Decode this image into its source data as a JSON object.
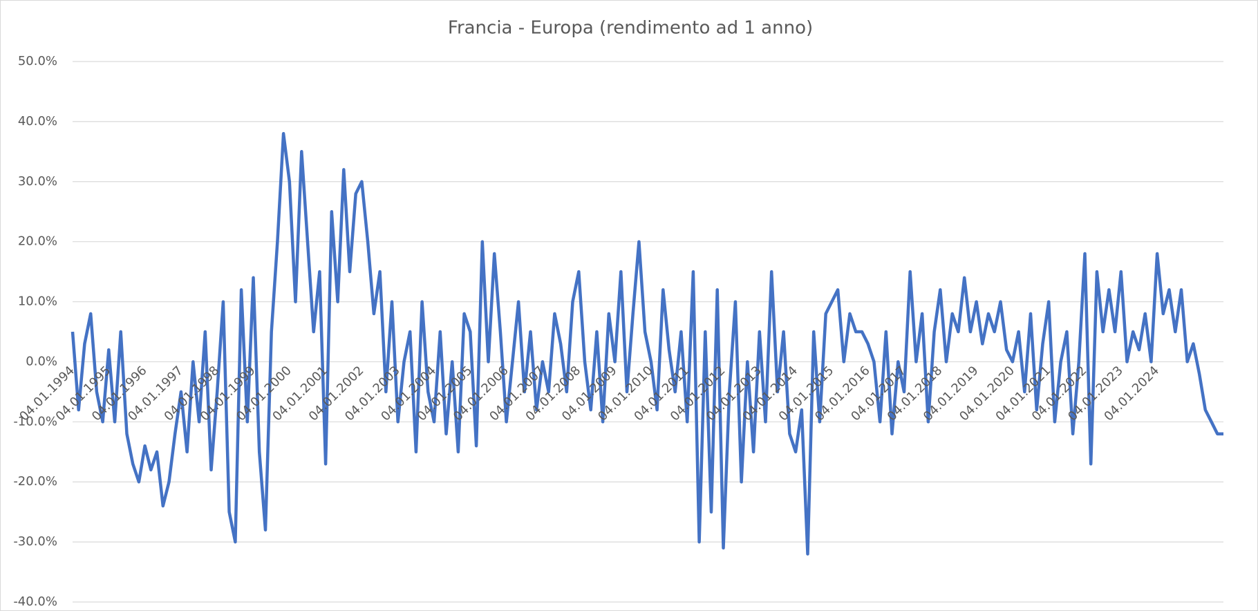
{
  "chart_data": {
    "type": "line",
    "title": "Francia - Europa (rendimento ad 1 anno)",
    "categories": [
      "04.01.1994",
      null,
      null,
      null,
      null,
      null,
      "04.01.1995",
      null,
      null,
      null,
      null,
      null,
      "04.01.1996",
      null,
      null,
      null,
      null,
      null,
      "04.01.1997",
      null,
      null,
      null,
      null,
      null,
      "04.01.1998",
      null,
      null,
      null,
      null,
      null,
      "04.01.1999",
      null,
      null,
      null,
      null,
      null,
      "04.01.2000",
      null,
      null,
      null,
      null,
      null,
      "04.01.2001",
      null,
      null,
      null,
      null,
      null,
      "04.01.2002",
      null,
      null,
      null,
      null,
      null,
      "04.01.2003",
      null,
      null,
      null,
      null,
      null,
      "04.01.2004",
      null,
      null,
      null,
      null,
      null,
      "04.01.2005",
      null,
      null,
      null,
      null,
      null,
      "04.01.2006",
      null,
      null,
      null,
      null,
      null,
      "04.01.2007",
      null,
      null,
      null,
      null,
      null,
      "04.01.2008",
      null,
      null,
      null,
      null,
      null,
      "04.01.2009",
      null,
      null,
      null,
      null,
      null,
      "04.01.2010",
      null,
      null,
      null,
      null,
      null,
      "04.01.2011",
      null,
      null,
      null,
      null,
      null,
      "04.01.2012",
      null,
      null,
      null,
      null,
      null,
      "04.01.2013",
      null,
      null,
      null,
      null,
      null,
      "04.01.2014",
      null,
      null,
      null,
      null,
      null,
      "04.01.2015",
      null,
      null,
      null,
      null,
      null,
      "04.01.2016",
      null,
      null,
      null,
      null,
      null,
      "04.01.2017",
      null,
      null,
      null,
      null,
      null,
      "04.01.2018",
      null,
      null,
      null,
      null,
      null,
      "04.01.2019",
      null,
      null,
      null,
      null,
      null,
      "04.01.2020",
      null,
      null,
      null,
      null,
      null,
      "04.01.2021",
      null,
      null,
      null,
      null,
      null,
      "04.01.2022",
      null,
      null,
      null,
      null,
      null,
      "04.01.2023",
      null,
      null,
      null,
      null,
      null,
      "04.01.2024",
      null,
      null,
      null,
      null,
      null,
      null,
      null,
      null,
      null,
      null,
      null
    ],
    "series": [
      {
        "name": "Francia - Europa",
        "color": "#4472c4",
        "values": [
          5,
          -8,
          3,
          8,
          -5,
          -10,
          2,
          -10,
          5,
          -12,
          -17,
          -20,
          -14,
          -18,
          -15,
          -24,
          -20,
          -12,
          -5,
          -15,
          0,
          -10,
          5,
          -18,
          -5,
          10,
          -25,
          -30,
          12,
          -10,
          14,
          -15,
          -28,
          5,
          20,
          38,
          30,
          10,
          35,
          20,
          5,
          15,
          -17,
          25,
          10,
          32,
          15,
          28,
          30,
          20,
          8,
          15,
          -5,
          10,
          -10,
          0,
          5,
          -15,
          10,
          -5,
          -10,
          5,
          -12,
          0,
          -15,
          8,
          5,
          -14,
          20,
          0,
          18,
          5,
          -10,
          0,
          10,
          -5,
          5,
          -8,
          0,
          -5,
          8,
          3,
          -5,
          10,
          15,
          0,
          -8,
          5,
          -10,
          8,
          0,
          15,
          -5,
          8,
          20,
          5,
          0,
          -8,
          12,
          2,
          -5,
          5,
          -10,
          15,
          -30,
          5,
          -25,
          12,
          -31,
          -5,
          10,
          -20,
          0,
          -15,
          5,
          -10,
          15,
          -5,
          5,
          -12,
          -15,
          -8,
          -32,
          5,
          -10,
          8,
          10,
          12,
          0,
          8,
          5,
          5,
          3,
          0,
          -10,
          5,
          -12,
          0,
          -5,
          15,
          0,
          8,
          -10,
          5,
          12,
          0,
          8,
          5,
          14,
          5,
          10,
          3,
          8,
          5,
          10,
          2,
          0,
          5,
          -5,
          8,
          -8,
          3,
          10,
          -10,
          0,
          5,
          -12,
          0,
          18,
          -17,
          15,
          5,
          12,
          5,
          15,
          0,
          5,
          2,
          8,
          0,
          18,
          8,
          12,
          5,
          12,
          0,
          3,
          -2,
          -8,
          -10,
          -12,
          -12
        ]
      }
    ],
    "ylim": [
      -40,
      50
    ],
    "yticks": [
      {
        "value": -40,
        "label": "-40.0%"
      },
      {
        "value": -30,
        "label": "-30.0%"
      },
      {
        "value": -20,
        "label": "-20.0%"
      },
      {
        "value": -10,
        "label": "-10.0%"
      },
      {
        "value": 0,
        "label": "0.0%"
      },
      {
        "value": 10,
        "label": "10.0%"
      },
      {
        "value": 20,
        "label": "20.0%"
      },
      {
        "value": 30,
        "label": "30.0%"
      },
      {
        "value": 40,
        "label": "40.0%"
      },
      {
        "value": 50,
        "label": "50.0%"
      }
    ],
    "grid": true
  }
}
